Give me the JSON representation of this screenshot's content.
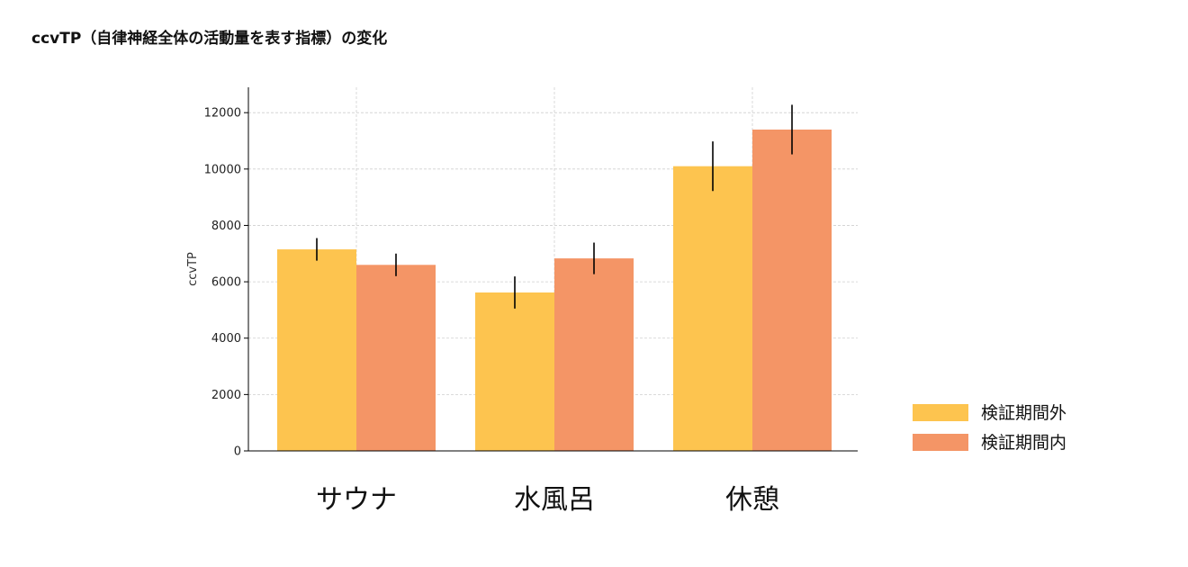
{
  "title": "ccvTP（自律神経全体の活動量を表す指標）の変化",
  "chart_data": {
    "type": "bar",
    "categories": [
      "サウナ",
      "水風呂",
      "休憩"
    ],
    "series": [
      {
        "name": "検証期間外",
        "values": [
          7150,
          5620,
          10100
        ],
        "errors": [
          400,
          570,
          880
        ],
        "color": "#fdc44f"
      },
      {
        "name": "検証期間内",
        "values": [
          6600,
          6830,
          11400
        ],
        "errors": [
          400,
          560,
          880
        ],
        "color": "#f49566"
      }
    ],
    "ylabel": "ccvTP",
    "xlabel": "",
    "ylim": [
      0,
      12900
    ],
    "yticks": [
      0,
      2000,
      4000,
      6000,
      8000,
      10000,
      12000
    ],
    "grid": true,
    "legend_position": "right"
  }
}
